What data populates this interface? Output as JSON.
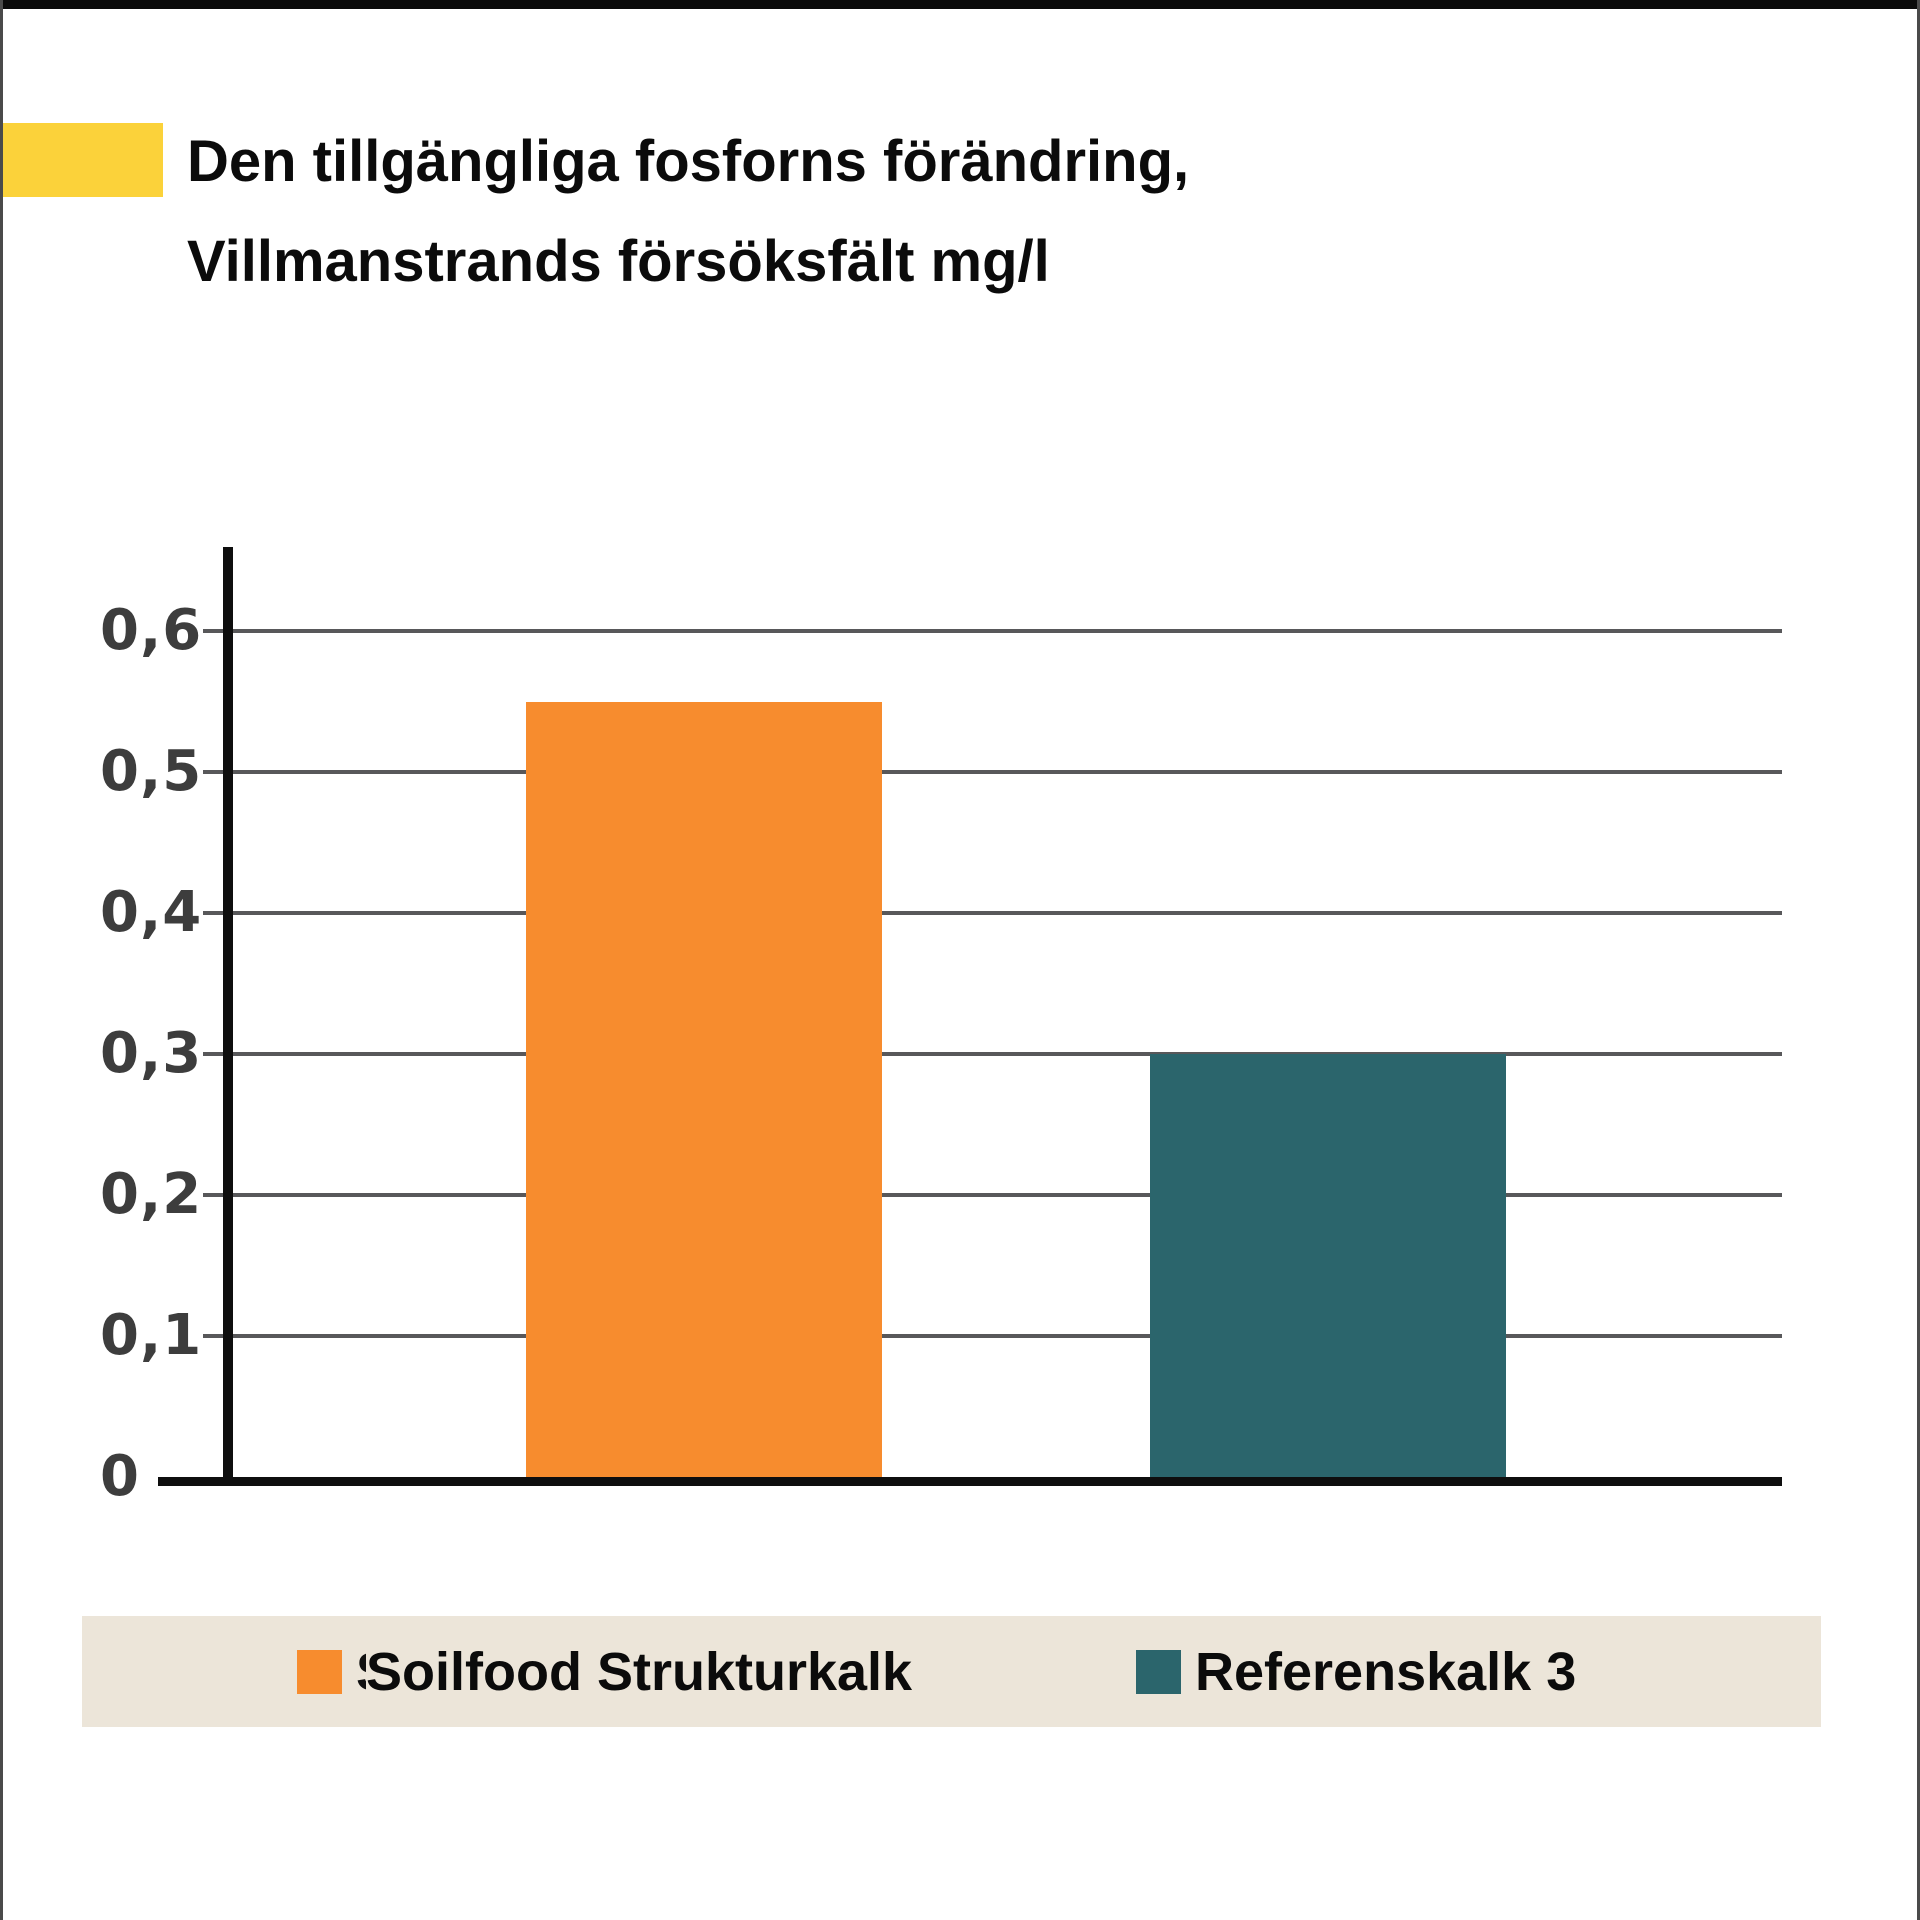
{
  "title": {
    "line1": "Den tillgängliga fosforns förändring,",
    "line2": "Villmanstrands försöksfält mg/l"
  },
  "chart_data": {
    "type": "bar",
    "title": "Den tillgängliga fosforns förändring, Villmanstrands försöksfält mg/l",
    "categories": [
      "Soilfood Strukturkalk",
      "Referenskalk 3"
    ],
    "values": [
      0.55,
      0.3
    ],
    "series_colors": [
      "#f78c2e",
      "#2b656c"
    ],
    "xlabel": "",
    "ylabel": "",
    "ylim": [
      0,
      0.66
    ],
    "yticks": [
      0,
      0.1,
      0.2,
      0.3,
      0.4,
      0.5,
      0.6
    ],
    "ytick_labels": [
      "0",
      "0,1",
      "0,2",
      "0,3",
      "0,4",
      "0,5",
      "0,6"
    ],
    "grid": "horizontal",
    "legend_position": "bottom"
  },
  "legend": {
    "background": "#ece5d9",
    "items": [
      {
        "label": "Soilfood Strukturkalk",
        "color": "#f78c2e",
        "clipped_char": "S"
      },
      {
        "label": "Referenskalk 3",
        "color": "#2b656c"
      }
    ]
  },
  "colors": {
    "accent_yellow": "#fbd23a",
    "grid_gray": "#58585a",
    "axis_black": "#0e0e0e",
    "tick_label_gray": "#3d3d3d",
    "border_top": "#0a0a0a",
    "border_side": "#4a4a4a",
    "background": "#ffffff"
  }
}
